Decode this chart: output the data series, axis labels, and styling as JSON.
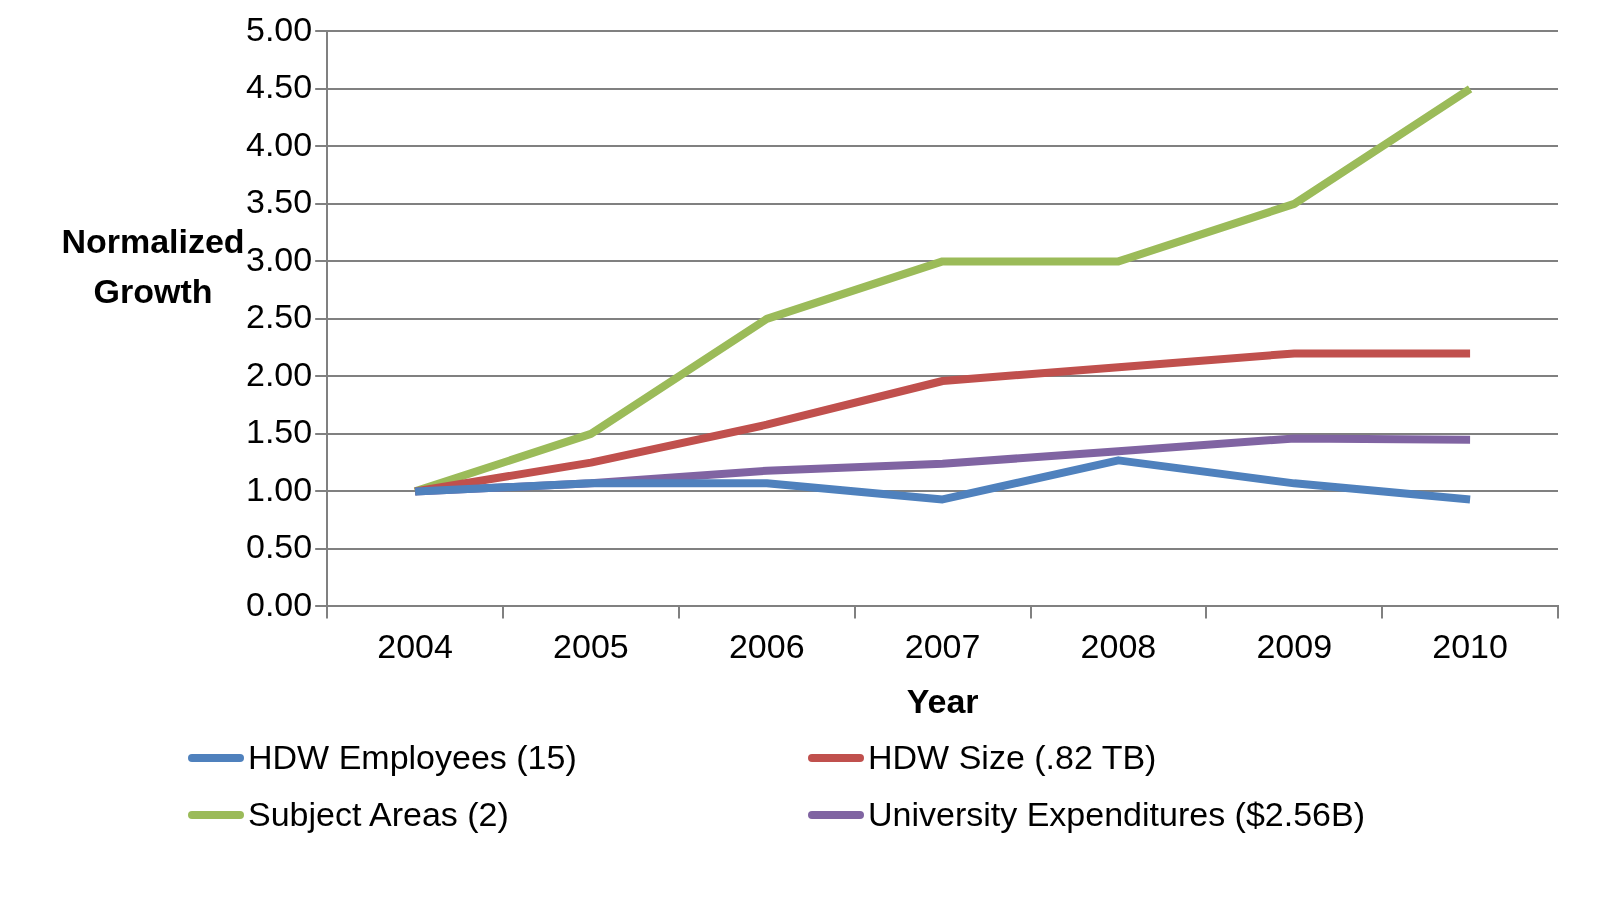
{
  "chart_data": {
    "type": "line",
    "xlabel": "Year",
    "ylabel": "Normalized Growth",
    "categories": [
      "2004",
      "2005",
      "2006",
      "2007",
      "2008",
      "2009",
      "2010"
    ],
    "series": [
      {
        "name": "HDW Employees (15)",
        "color": "#4f81bd",
        "values": [
          1.0,
          1.07,
          1.07,
          0.93,
          1.27,
          1.07,
          0.93
        ]
      },
      {
        "name": "HDW Size (.82 TB)",
        "color": "#c0504d",
        "values": [
          1.0,
          1.25,
          1.58,
          1.96,
          2.08,
          2.2,
          2.2
        ]
      },
      {
        "name": "Subject Areas (2)",
        "color": "#9bbb59",
        "values": [
          1.0,
          1.5,
          2.5,
          3.0,
          3.0,
          3.5,
          4.5
        ]
      },
      {
        "name": "University Expenditures ($2.56B)",
        "color": "#8064a2",
        "values": [
          1.0,
          1.07,
          1.18,
          1.24,
          1.35,
          1.46,
          1.45
        ]
      }
    ],
    "ylim": [
      0,
      5
    ],
    "yticks": [
      {
        "value": 0,
        "label": "0.00"
      },
      {
        "value": 0.5,
        "label": "0.50"
      },
      {
        "value": 1,
        "label": "1.00"
      },
      {
        "value": 1.5,
        "label": "1.50"
      },
      {
        "value": 2,
        "label": "2.00"
      },
      {
        "value": 2.5,
        "label": "2.50"
      },
      {
        "value": 3,
        "label": "3.00"
      },
      {
        "value": 3.5,
        "label": "3.50"
      },
      {
        "value": 4,
        "label": "4.00"
      },
      {
        "value": 4.5,
        "label": "4.50"
      },
      {
        "value": 5,
        "label": "5.00"
      }
    ],
    "grid": "y",
    "legend": "bottom",
    "marker": "none",
    "line_style": "solid"
  }
}
